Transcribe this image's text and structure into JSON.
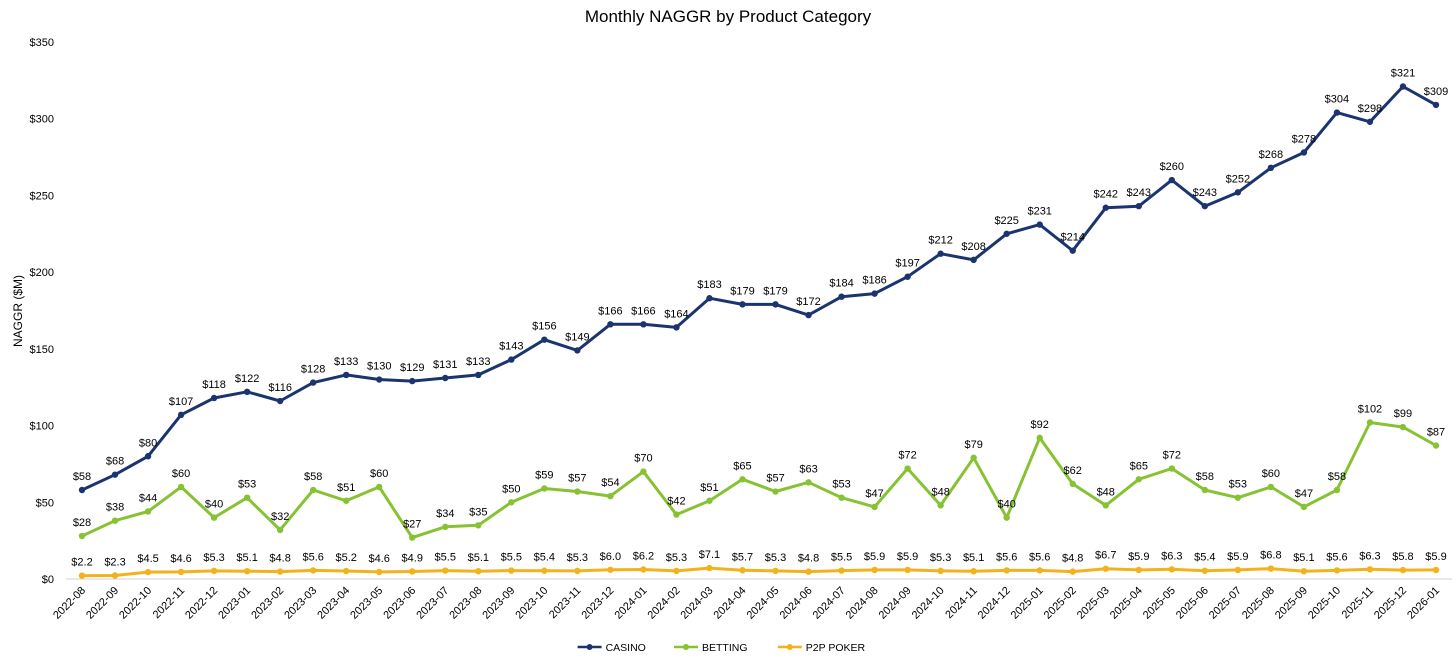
{
  "chart_data": {
    "type": "line",
    "title": "Monthly NAGGR by Product Category",
    "xlabel": "",
    "ylabel": "NAGGR ($M)",
    "ylim": [
      0,
      350
    ],
    "yticks": [
      0,
      50,
      100,
      150,
      200,
      250,
      300,
      350
    ],
    "ytick_labels": [
      "$0",
      "$50",
      "$100",
      "$150",
      "$200",
      "$250",
      "$300",
      "$350"
    ],
    "grid": false,
    "legend_position": "bottom",
    "categories": [
      "2022-08",
      "2022-09",
      "2022-10",
      "2022-11",
      "2022-12",
      "2023-01",
      "2023-02",
      "2023-03",
      "2023-04",
      "2023-05",
      "2023-06",
      "2023-07",
      "2023-08",
      "2023-09",
      "2023-10",
      "2023-11",
      "2023-12",
      "2024-01",
      "2024-02",
      "2024-03",
      "2024-04",
      "2024-05",
      "2024-06",
      "2024-07",
      "2024-08",
      "2024-09",
      "2024-10",
      "2024-11",
      "2024-12",
      "2025-01",
      "2025-02",
      "2025-03",
      "2025-04",
      "2025-05",
      "2025-06",
      "2025-07",
      "2025-08",
      "2025-09",
      "2025-10",
      "2025-11",
      "2025-12",
      "2026-01"
    ],
    "series": [
      {
        "name": "CASINO",
        "color": "#1b3470",
        "values": [
          58,
          68,
          80,
          107,
          118,
          122,
          116,
          128,
          133,
          130,
          129,
          131,
          133,
          143,
          156,
          149,
          166,
          166,
          164,
          183,
          179,
          179,
          172,
          184,
          186,
          197,
          212,
          208,
          225,
          231,
          214,
          242,
          243,
          260,
          243,
          252,
          268,
          278,
          304,
          298,
          321,
          309
        ],
        "labels": [
          "$58",
          "$68",
          "$80",
          "$107",
          "$118",
          "$122",
          "$116",
          "$128",
          "$133",
          "$130",
          "$129",
          "$131",
          "$133",
          "$143",
          "$156",
          "$149",
          "$166",
          "$166",
          "$164",
          "$183",
          "$179",
          "$179",
          "$172",
          "$184",
          "$186",
          "$197",
          "$212",
          "$208",
          "$225",
          "$231",
          "$214",
          "$242",
          "$243",
          "$260",
          "$243",
          "$252",
          "$268",
          "$278",
          "$304",
          "$298",
          "$321",
          "$309"
        ]
      },
      {
        "name": "BETTING",
        "color": "#86c232",
        "values": [
          28,
          38,
          44,
          60,
          40,
          53,
          32,
          58,
          51,
          60,
          27,
          34,
          35,
          50,
          59,
          57,
          54,
          70,
          42,
          51,
          65,
          57,
          63,
          53,
          47,
          72,
          48,
          79,
          40,
          92,
          62,
          48,
          65,
          72,
          58,
          53,
          60,
          47,
          58,
          102,
          99,
          87
        ],
        "labels": [
          "$28",
          "$38",
          "$44",
          "$60",
          "$40",
          "$53",
          "$32",
          "$58",
          "$51",
          "$60",
          "$27",
          "$34",
          "$35",
          "$50",
          "$59",
          "$57",
          "$54",
          "$70",
          "$42",
          "$51",
          "$65",
          "$57",
          "$63",
          "$53",
          "$47",
          "$72",
          "$48",
          "$79",
          "$40",
          "$92",
          "$62",
          "$48",
          "$65",
          "$72",
          "$58",
          "$53",
          "$60",
          "$47",
          "$58",
          "$102",
          "$99",
          "$87"
        ]
      },
      {
        "name": "P2P POKER",
        "color": "#f3b21b",
        "values": [
          2.2,
          2.3,
          4.5,
          4.6,
          5.3,
          5.1,
          4.8,
          5.6,
          5.2,
          4.6,
          4.9,
          5.5,
          5.1,
          5.5,
          5.4,
          5.3,
          6.0,
          6.2,
          5.3,
          7.1,
          5.7,
          5.3,
          4.8,
          5.5,
          5.9,
          5.9,
          5.3,
          5.1,
          5.6,
          5.6,
          4.8,
          6.7,
          5.9,
          6.3,
          5.4,
          5.9,
          6.8,
          5.1,
          5.6,
          6.3,
          5.8,
          5.9
        ],
        "labels": [
          "$2.2",
          "$2.3",
          "$4.5",
          "$4.6",
          "$5.3",
          "$5.1",
          "$4.8",
          "$5.6",
          "$5.2",
          "$4.6",
          "$4.9",
          "$5.5",
          "$5.1",
          "$5.5",
          "$5.4",
          "$5.3",
          "$6.0",
          "$6.2",
          "$5.3",
          "$7.1",
          "$5.7",
          "$5.3",
          "$4.8",
          "$5.5",
          "$5.9",
          "$5.9",
          "$5.3",
          "$5.1",
          "$5.6",
          "$5.6",
          "$4.8",
          "$6.7",
          "$5.9",
          "$6.3",
          "$5.4",
          "$5.9",
          "$6.8",
          "$5.1",
          "$5.6",
          "$6.3",
          "$5.8",
          "$5.9"
        ]
      }
    ]
  }
}
